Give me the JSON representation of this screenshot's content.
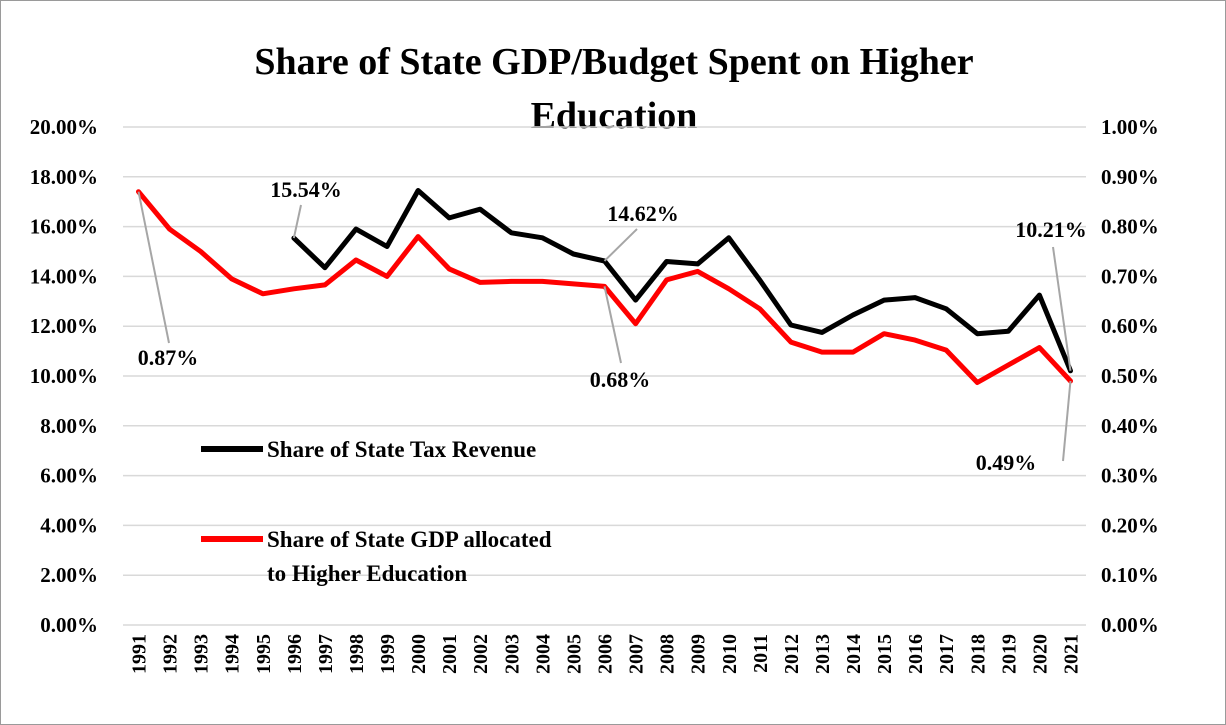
{
  "chart_data": {
    "type": "line",
    "title": [
      "Share of State GDP/Budget Spent on Higher",
      "Education"
    ],
    "x": [
      "1991",
      "1992",
      "1993",
      "1994",
      "1995",
      "1996",
      "1997",
      "1998",
      "1999",
      "2000",
      "2001",
      "2002",
      "2003",
      "2004",
      "2005",
      "2006",
      "2007",
      "2008",
      "2009",
      "2010",
      "2011",
      "2012",
      "2013",
      "2014",
      "2015",
      "2016",
      "2017",
      "2018",
      "2019",
      "2020",
      "2021"
    ],
    "y_left": {
      "range": [
        0,
        20
      ],
      "ticks": [
        "0.00%",
        "2.00%",
        "4.00%",
        "6.00%",
        "8.00%",
        "10.00%",
        "12.00%",
        "14.00%",
        "16.00%",
        "18.00%",
        "20.00%"
      ]
    },
    "y_right": {
      "range": [
        0,
        1
      ],
      "ticks": [
        "0.00%",
        "0.10%",
        "0.20%",
        "0.30%",
        "0.40%",
        "0.50%",
        "0.60%",
        "0.70%",
        "0.80%",
        "0.90%",
        "1.00%"
      ]
    },
    "grid": true,
    "legend_position": "left-inside",
    "series": [
      {
        "name": "Share of State Tax Revenue",
        "axis": "left",
        "color": "#000000",
        "values": [
          null,
          null,
          null,
          null,
          null,
          15.54,
          14.35,
          15.9,
          15.2,
          17.45,
          16.35,
          16.7,
          15.75,
          15.55,
          14.9,
          14.62,
          13.05,
          14.6,
          14.5,
          15.55,
          13.85,
          12.05,
          11.75,
          12.45,
          13.05,
          13.15,
          12.7,
          11.7,
          11.8,
          13.25,
          10.21
        ]
      },
      {
        "name": "Share of State GDP allocated to Higher Education",
        "legend_lines": [
          "Share of State GDP allocated",
          "to Higher Education"
        ],
        "axis": "right",
        "color": "#ff0000",
        "values": [
          0.87,
          0.795,
          0.75,
          0.695,
          0.665,
          0.675,
          0.683,
          0.733,
          0.7,
          0.78,
          0.715,
          0.688,
          0.69,
          0.69,
          0.685,
          0.68,
          0.605,
          0.693,
          0.71,
          0.675,
          0.635,
          0.568,
          0.548,
          0.548,
          0.585,
          0.572,
          0.552,
          0.487,
          0.522,
          0.557,
          0.49
        ]
      }
    ],
    "annotations": [
      {
        "text": "15.54%",
        "series": 0,
        "x": "1996"
      },
      {
        "text": "14.62%",
        "series": 0,
        "x": "2006"
      },
      {
        "text": "10.21%",
        "series": 0,
        "x": "2021"
      },
      {
        "text": "0.87%",
        "series": 1,
        "x": "1991"
      },
      {
        "text": "0.68%",
        "series": 1,
        "x": "2006"
      },
      {
        "text": "0.49%",
        "series": 1,
        "x": "2021"
      }
    ]
  }
}
